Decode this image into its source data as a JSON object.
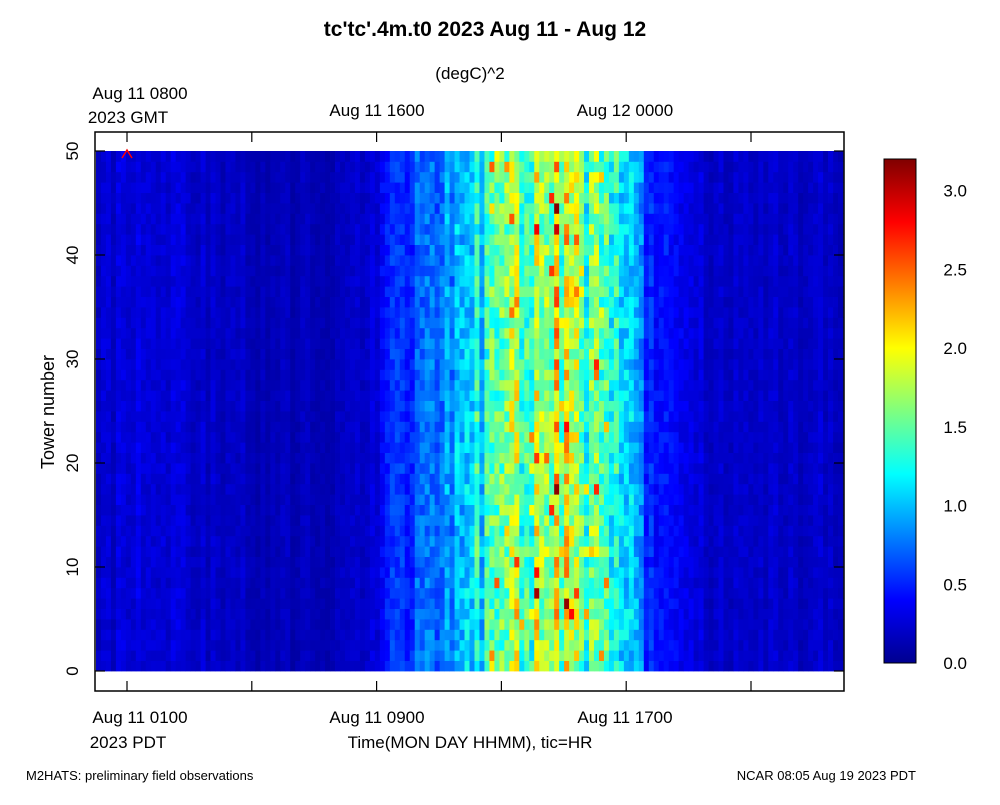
{
  "chart_data": {
    "type": "heatmap",
    "title": "tc'tc'.4m.t0 2023 Aug 11 - Aug 12",
    "units": "(degC)^2",
    "ylabel": "Tower number",
    "xlabel": "Time(MON DAY HHMM), tic=HR",
    "ylim": [
      0,
      50
    ],
    "yticks": [
      0,
      10,
      20,
      30,
      40,
      50
    ],
    "y_tick_labels": [
      "0",
      "10",
      "20",
      "30",
      "40",
      "50"
    ],
    "x_range_pdt": [
      "Aug 11 0000",
      "Aug 12 0000"
    ],
    "top_axis_labels": [
      {
        "line1": "Aug 11 0800",
        "line2": "2023 GMT"
      },
      {
        "line1": "Aug 11 1600",
        "line2": ""
      },
      {
        "line1": "Aug 12 0000",
        "line2": ""
      }
    ],
    "bottom_axis_labels": [
      {
        "line1": "Aug 11 0100",
        "line2": "2023 PDT"
      },
      {
        "line1": "Aug 11 0900",
        "line2": ""
      },
      {
        "line1": "Aug 11 1700",
        "line2": ""
      }
    ],
    "colorbar": {
      "min": 0.0,
      "max": 3.2,
      "ticks": [
        "0.0",
        "0.5",
        "1.0",
        "1.5",
        "2.0",
        "2.5",
        "3.0"
      ],
      "colormap": "jet"
    },
    "time_profile_hours_pdt": [
      {
        "hour": 0,
        "value": 0.25
      },
      {
        "hour": 1,
        "value": 0.28
      },
      {
        "hour": 2,
        "value": 0.22
      },
      {
        "hour": 3,
        "value": 0.2
      },
      {
        "hour": 4,
        "value": 0.18
      },
      {
        "hour": 5,
        "value": 0.17
      },
      {
        "hour": 6,
        "value": 0.16
      },
      {
        "hour": 7,
        "value": 0.16
      },
      {
        "hour": 8,
        "value": 0.3
      },
      {
        "hour": 9,
        "value": 0.55
      },
      {
        "hour": 10,
        "value": 0.75
      },
      {
        "hour": 11,
        "value": 1.0
      },
      {
        "hour": 12,
        "value": 1.35
      },
      {
        "hour": 13,
        "value": 1.6
      },
      {
        "hour": 14,
        "value": 1.65
      },
      {
        "hour": 15,
        "value": 1.45
      },
      {
        "hour": 16,
        "value": 0.9
      },
      {
        "hour": 17,
        "value": 0.45
      },
      {
        "hour": 18,
        "value": 0.25
      },
      {
        "hour": 19,
        "value": 0.22
      },
      {
        "hour": 20,
        "value": 0.2
      },
      {
        "hour": 21,
        "value": 0.2
      },
      {
        "hour": 22,
        "value": 0.22
      },
      {
        "hour": 23,
        "value": 0.24
      },
      {
        "hour": 24,
        "value": 0.24
      }
    ],
    "grid": false
  },
  "colors": {
    "background": "#ffffff",
    "marker": "#ff0000"
  },
  "footer": {
    "left": "M2HATS: preliminary field observations",
    "right": "NCAR 08:05 Aug 19 2023 PDT"
  }
}
